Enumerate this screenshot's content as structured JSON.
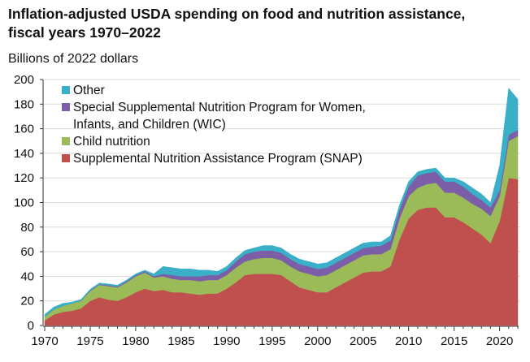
{
  "title_line1": "Inflation-adjusted USDA spending on food and nutrition assistance,",
  "title_line2": "fiscal years 1970–2022",
  "chart_data": {
    "type": "area",
    "stacked": true,
    "title": "Inflation-adjusted USDA spending on food and nutrition assistance, fiscal years 1970–2022",
    "ylabel": "Billions of 2022 dollars",
    "xlabel": "",
    "xlim": [
      1970,
      2022
    ],
    "ylim": [
      0,
      200
    ],
    "grid": true,
    "legend_placement": "top-left",
    "x": [
      1970,
      1971,
      1972,
      1973,
      1974,
      1975,
      1976,
      1977,
      1978,
      1979,
      1980,
      1981,
      1982,
      1983,
      1984,
      1985,
      1986,
      1987,
      1988,
      1989,
      1990,
      1991,
      1992,
      1993,
      1994,
      1995,
      1996,
      1997,
      1998,
      1999,
      2000,
      2001,
      2002,
      2003,
      2004,
      2005,
      2006,
      2007,
      2008,
      2009,
      2010,
      2011,
      2012,
      2013,
      2014,
      2015,
      2016,
      2017,
      2018,
      2019,
      2020,
      2021,
      2022
    ],
    "x_ticks": [
      "1970",
      "1975",
      "1980",
      "1985",
      "1990",
      "1995",
      "2000",
      "2005",
      "2010",
      "2015",
      "2020"
    ],
    "y_ticks": [
      "0",
      "20",
      "40",
      "60",
      "80",
      "100",
      "120",
      "140",
      "160",
      "180",
      "200"
    ],
    "series": [
      {
        "name": "Supplemental Nutrition Assistance Program (SNAP)",
        "color": "#c0504d",
        "values": [
          4,
          9,
          11,
          12,
          14,
          20,
          23,
          21,
          20,
          23,
          27,
          30,
          28,
          29,
          27,
          27,
          26,
          25,
          26,
          26,
          30,
          35,
          41,
          42,
          42,
          42,
          41,
          36,
          31,
          29,
          27,
          27,
          31,
          35,
          39,
          43,
          44,
          44,
          48,
          70,
          87,
          94,
          96,
          96,
          88,
          88,
          84,
          79,
          74,
          67,
          85,
          120,
          119
        ]
      },
      {
        "name": "Child nutrition",
        "color": "#9bbb59",
        "values": [
          3,
          4,
          5,
          6,
          6,
          8,
          10,
          11,
          11,
          12,
          13,
          13,
          11,
          11,
          11,
          10,
          11,
          11,
          11,
          11,
          11,
          12,
          11,
          12,
          13,
          13,
          12,
          12,
          13,
          13,
          13,
          14,
          14,
          14,
          14,
          14,
          14,
          14,
          14,
          17,
          18,
          18,
          19,
          20,
          20,
          20,
          20,
          20,
          21,
          22,
          20,
          30,
          35
        ]
      },
      {
        "name": "Special Supplemental Nutrition Program for Women, Infants, and Children (WIC)",
        "color": "#7b5ea7",
        "values": [
          0,
          0,
          0,
          0,
          0.2,
          0.5,
          0.5,
          0.8,
          0.8,
          1,
          1,
          1,
          1,
          2,
          3,
          3,
          3,
          4,
          4,
          4,
          4,
          5,
          6,
          6,
          6,
          6,
          6,
          6,
          6,
          6,
          6,
          6,
          6,
          6,
          6,
          6,
          6,
          7,
          7,
          7,
          8,
          10,
          9,
          9,
          9,
          9,
          9,
          8,
          7,
          7,
          5,
          5,
          5
        ]
      },
      {
        "name": "Other",
        "color": "#3aafc8",
        "values": [
          2,
          2,
          2,
          1,
          1,
          1,
          1,
          1,
          1,
          1,
          1,
          1,
          2,
          6,
          6,
          6,
          6,
          5,
          4,
          3,
          3,
          3,
          3,
          3,
          4,
          4,
          4,
          4,
          4,
          4,
          4,
          4,
          4,
          4,
          4,
          4,
          4,
          3,
          4,
          4,
          4,
          3,
          3,
          3,
          3,
          3,
          4,
          5,
          5,
          4,
          20,
          38,
          25
        ]
      }
    ],
    "legend": [
      {
        "lines": [
          "Other"
        ],
        "color": "#3aafc8"
      },
      {
        "lines": [
          "Special Supplemental Nutrition Program for Women,",
          "Infants, and Children (WIC)"
        ],
        "color": "#7b5ea7"
      },
      {
        "lines": [
          "Child nutrition"
        ],
        "color": "#9bbb59"
      },
      {
        "lines": [
          "Supplemental Nutrition Assistance Program (SNAP)"
        ],
        "color": "#c0504d"
      }
    ]
  }
}
